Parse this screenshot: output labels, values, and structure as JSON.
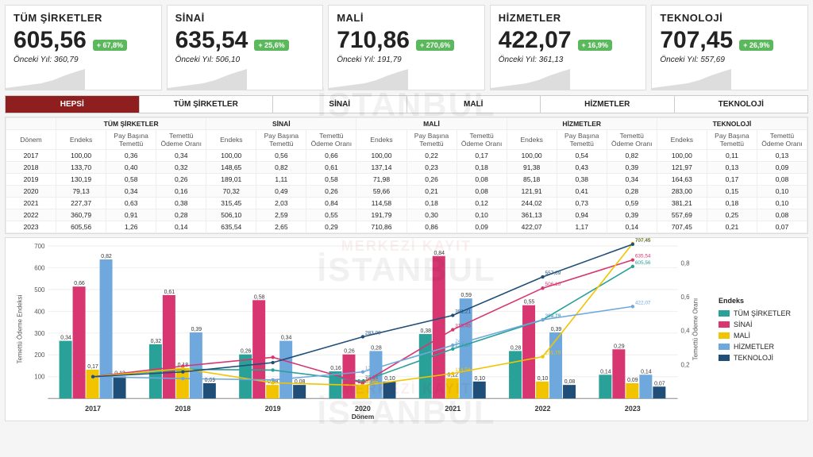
{
  "watermark": {
    "line1": "MERKEZİ KAYIT",
    "line2": "İSTANBUL"
  },
  "prev_prefix": "Önceki Yıl: ",
  "kpis": [
    {
      "title": "TÜM ŞİRKETLER",
      "value": "605,56",
      "change": "+ 67,8%",
      "prev": "360,79"
    },
    {
      "title": "SİNAİ",
      "value": "635,54",
      "change": "+ 25,6%",
      "prev": "506,10"
    },
    {
      "title": "MALİ",
      "value": "710,86",
      "change": "+ 270,6%",
      "prev": "191,79"
    },
    {
      "title": "HİZMETLER",
      "value": "422,07",
      "change": "+ 16,9%",
      "prev": "361,13"
    },
    {
      "title": "TEKNOLOJİ",
      "value": "707,45",
      "change": "+ 26,9%",
      "prev": "557,69"
    }
  ],
  "tabs": [
    "HEPSİ",
    "TÜM ŞİRKETLER",
    "SİNAİ",
    "MALİ",
    "HİZMETLER",
    "TEKNOLOJİ"
  ],
  "active_tab": 0,
  "table": {
    "group_headers": [
      "",
      "TÜM ŞİRKETLER",
      "SİNAİ",
      "MALİ",
      "HİZMETLER",
      "TEKNOLOJİ"
    ],
    "sub_headers": [
      "Dönem",
      "Endeks",
      "Pay Başına Temettü",
      "Temettü Ödeme Oranı",
      "Endeks",
      "Pay Başına Temettü",
      "Temettü Ödeme Oranı",
      "Endeks",
      "Pay Başına Temettü",
      "Temettü Ödeme Oranı",
      "Endeks",
      "Pay Başına Temettü",
      "Temettü Ödeme Oranı",
      "Endeks",
      "Pay Başına Temettü",
      "Temettü Ödeme Oranı"
    ],
    "rows": [
      [
        "2017",
        "100,00",
        "0,36",
        "0,34",
        "100,00",
        "0,56",
        "0,66",
        "100,00",
        "0,22",
        "0,17",
        "100,00",
        "0,54",
        "0,82",
        "100,00",
        "0,11",
        "0,13"
      ],
      [
        "2018",
        "133,70",
        "0,40",
        "0,32",
        "148,65",
        "0,82",
        "0,61",
        "137,14",
        "0,23",
        "0,18",
        "91,38",
        "0,43",
        "0,39",
        "121,97",
        "0,13",
        "0,09"
      ],
      [
        "2019",
        "130,19",
        "0,58",
        "0,26",
        "189,01",
        "1,11",
        "0,58",
        "71,98",
        "0,26",
        "0,08",
        "85,18",
        "0,38",
        "0,34",
        "164,63",
        "0,17",
        "0,08"
      ],
      [
        "2020",
        "79,13",
        "0,34",
        "0,16",
        "70,32",
        "0,49",
        "0,26",
        "59,66",
        "0,21",
        "0,08",
        "121,91",
        "0,41",
        "0,28",
        "283,00",
        "0,15",
        "0,10"
      ],
      [
        "2021",
        "227,37",
        "0,63",
        "0,38",
        "315,45",
        "2,03",
        "0,84",
        "114,58",
        "0,18",
        "0,12",
        "244,02",
        "0,73",
        "0,59",
        "381,21",
        "0,18",
        "0,10"
      ],
      [
        "2022",
        "360,79",
        "0,91",
        "0,28",
        "506,10",
        "2,59",
        "0,55",
        "191,79",
        "0,30",
        "0,10",
        "361,13",
        "0,94",
        "0,39",
        "557,69",
        "0,25",
        "0,08"
      ],
      [
        "2023",
        "605,56",
        "1,26",
        "0,14",
        "635,54",
        "2,65",
        "0,29",
        "710,86",
        "0,86",
        "0,09",
        "422,07",
        "1,17",
        "0,14",
        "707,45",
        "0,21",
        "0,07"
      ]
    ]
  },
  "chart": {
    "type": "bar+line",
    "categories": [
      "2017",
      "2018",
      "2019",
      "2020",
      "2021",
      "2022",
      "2023"
    ],
    "xlabel": "Dönem",
    "ylabel_left": "Temettü Ödeme Endeksi",
    "ylabel_right": "Temettü Ödeme Oranı",
    "y_left": {
      "min": 0,
      "max": 700,
      "step": 100
    },
    "y_right": {
      "min": 0,
      "max": 0.9,
      "step": 0.2
    },
    "legend_title": "Endeks",
    "bar_label_fontsize": 7,
    "axis_fontsize": 8,
    "series": [
      {
        "name": "TÜM ŞİRKETLER",
        "type": "bar",
        "color": "#2aa198",
        "endeks": [
          100.0,
          133.7,
          130.19,
          79.13,
          227.37,
          360.79,
          605.56
        ],
        "ratio": [
          0.34,
          0.32,
          0.26,
          0.16,
          0.38,
          0.28,
          0.14
        ],
        "ratio_lbl": [
          "0,34",
          "0,32",
          "0,26",
          "0,16",
          "0,38",
          "0,28",
          "0,14"
        ]
      },
      {
        "name": "SİNAİ",
        "type": "bar",
        "color": "#d83670",
        "endeks": [
          100.0,
          148.65,
          189.01,
          70.32,
          315.45,
          506.1,
          635.54
        ],
        "ratio": [
          0.66,
          0.61,
          0.58,
          0.26,
          0.84,
          0.55,
          0.29
        ],
        "ratio_lbl": [
          "0,66",
          "0,61",
          "0,58",
          "0,26",
          "0,84",
          "0,55",
          "0,29"
        ]
      },
      {
        "name": "MALİ",
        "type": "bar",
        "color": "#f2c400",
        "endeks": [
          100.0,
          137.14,
          71.98,
          59.66,
          114.58,
          191.79,
          710.86
        ],
        "ratio": [
          0.17,
          0.18,
          0.08,
          0.08,
          0.12,
          0.1,
          0.09
        ],
        "ratio_lbl": [
          "0,17",
          "0,18",
          "0,08",
          "0,08",
          "0,12",
          "0,10",
          "0,09"
        ]
      },
      {
        "name": "HİZMETLER",
        "type": "bar",
        "color": "#6fa8dc",
        "endeks": [
          100.0,
          91.38,
          85.18,
          121.91,
          244.02,
          361.13,
          422.07
        ],
        "ratio": [
          0.82,
          0.39,
          0.34,
          0.28,
          0.59,
          0.39,
          0.14
        ],
        "ratio_lbl": [
          "0,82",
          "0,39",
          "0,34",
          "0,28",
          "0,59",
          "0,39",
          "0,14"
        ]
      },
      {
        "name": "TEKNOLOJİ",
        "type": "bar",
        "color": "#1f4e79",
        "endeks": [
          100.0,
          121.97,
          164.63,
          283.0,
          381.21,
          557.69,
          707.45
        ],
        "ratio": [
          0.13,
          0.09,
          0.08,
          0.1,
          0.1,
          0.08,
          0.07
        ],
        "ratio_lbl": [
          "0,13",
          "0,09",
          "0,08",
          "0,10",
          "0,10",
          "0,08",
          "0,07"
        ]
      }
    ],
    "top_labels": [
      [
        "100,00"
      ],
      [
        "91,38"
      ],
      [
        "189,01",
        "71,98"
      ],
      [
        "283,00",
        "121,91",
        "70,32"
      ],
      [
        "381,21",
        "227,37",
        "114,58"
      ],
      [
        "557,69",
        "506,10",
        "360,79",
        "191,79"
      ],
      [
        "710,86",
        "635,54",
        "605,56",
        "422,07"
      ]
    ]
  },
  "colors": {
    "badge_bg": "#5cb85c",
    "tab_active_bg": "#8f1f1f",
    "grid": "#e0e0e0",
    "axis": "#555"
  }
}
